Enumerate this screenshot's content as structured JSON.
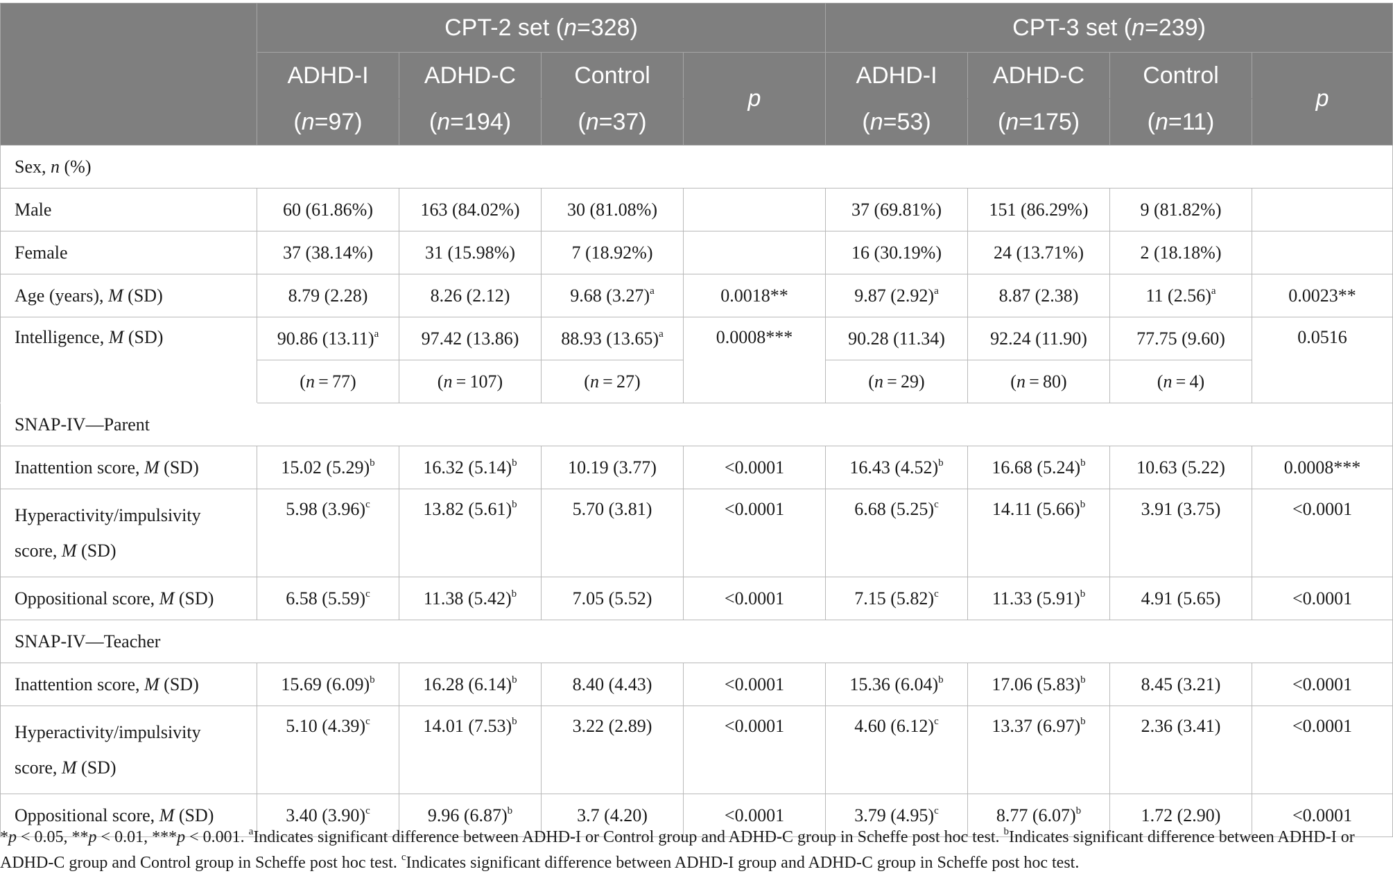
{
  "header": {
    "group_left": {
      "label": "CPT-2 set (",
      "n_italic": "n",
      "count": "=328)"
    },
    "group_right": {
      "label": "CPT-3 set (",
      "n_italic": "n",
      "count": "=239)"
    },
    "p_label": "p",
    "left_cols": [
      {
        "name": "ADHD-I",
        "n_pre": "(",
        "n_italic": "n",
        "n_post": "=97)"
      },
      {
        "name": "ADHD-C",
        "n_pre": "(",
        "n_italic": "n",
        "n_post": "=194)"
      },
      {
        "name": "Control",
        "n_pre": "(",
        "n_italic": "n",
        "n_post": "=37)"
      }
    ],
    "right_cols": [
      {
        "name": "ADHD-I",
        "n_pre": "(",
        "n_italic": "n",
        "n_post": "=53)"
      },
      {
        "name": "ADHD-C",
        "n_pre": "(",
        "n_italic": "n",
        "n_post": "=175)"
      },
      {
        "name": "Control",
        "n_pre": "(",
        "n_italic": "n",
        "n_post": "=11)"
      }
    ]
  },
  "rows": {
    "sex_section": {
      "pre": "Sex, ",
      "it": "n",
      "post": " (%)"
    },
    "male": {
      "label": "Male",
      "c": [
        "60 (61.86%)",
        "163 (84.02%)",
        "30 (81.08%)",
        "",
        "37 (69.81%)",
        "151 (86.29%)",
        "9 (81.82%)",
        ""
      ]
    },
    "female": {
      "label": "Female",
      "c": [
        "37 (38.14%)",
        "31 (15.98%)",
        "7 (18.92%)",
        "",
        "16 (30.19%)",
        "24 (13.71%)",
        "2 (18.18%)",
        ""
      ]
    },
    "age": {
      "label_pre": "Age (years), ",
      "label_it": "M",
      "label_post": " (SD)",
      "c": [
        "8.79 (2.28)",
        "8.26 (2.12)",
        "9.68 (3.27)",
        "0.0018**",
        "9.87 (2.92)",
        "8.87 (2.38)",
        "11 (2.56)",
        "0.0023**"
      ],
      "sup": [
        "",
        "",
        "a",
        "",
        "a",
        "",
        "a",
        ""
      ]
    },
    "intel": {
      "label_pre": "Intelligence, ",
      "label_it": "M",
      "label_post": " (SD)",
      "c": [
        "90.86 (13.11)",
        "97.42 (13.86)",
        "88.93 (13.65)",
        "0.0008***",
        "90.28 (11.34)",
        "92.24 (11.90)",
        "77.75 (9.60)",
        "0.0516"
      ],
      "sup": [
        "a",
        "",
        "a",
        "",
        "",
        "",
        "",
        ""
      ],
      "n_sub": [
        "77",
        "107",
        "27",
        "29",
        "80",
        "4"
      ]
    },
    "snap_parent": "SNAP-IV—Parent",
    "p_inatt": {
      "label_pre": "Inattention score, ",
      "label_it": "M",
      "label_post": " (SD)",
      "c": [
        "15.02 (5.29)",
        "16.32 (5.14)",
        "10.19 (3.77)",
        "<0.0001",
        "16.43 (4.52)",
        "16.68 (5.24)",
        "10.63 (5.22)",
        "0.0008***"
      ],
      "sup": [
        "b",
        "b",
        "",
        "",
        "b",
        "b",
        "",
        ""
      ]
    },
    "p_hyper": {
      "label_line1": "Hyperactivity/impulsivity",
      "label_line2_pre": "score, ",
      "label_it": "M",
      "label_post": " (SD)",
      "c": [
        "5.98 (3.96)",
        "13.82 (5.61)",
        "5.70 (3.81)",
        "<0.0001",
        "6.68 (5.25)",
        "14.11 (5.66)",
        "3.91 (3.75)",
        "<0.0001"
      ],
      "sup": [
        "c",
        "b",
        "",
        "",
        "c",
        "b",
        "",
        ""
      ]
    },
    "p_opp": {
      "label_pre": "Oppositional score, ",
      "label_it": "M",
      "label_post": " (SD)",
      "c": [
        "6.58 (5.59)",
        "11.38 (5.42)",
        "7.05 (5.52)",
        "<0.0001",
        "7.15 (5.82)",
        "11.33 (5.91)",
        "4.91 (5.65)",
        "<0.0001"
      ],
      "sup": [
        "c",
        "b",
        "",
        "",
        "c",
        "b",
        "",
        ""
      ]
    },
    "snap_teacher": "SNAP-IV—Teacher",
    "t_inatt": {
      "label_pre": "Inattention score, ",
      "label_it": "M",
      "label_post": " (SD)",
      "c": [
        "15.69 (6.09)",
        "16.28 (6.14)",
        "8.40 (4.43)",
        "<0.0001",
        "15.36 (6.04)",
        "17.06 (5.83)",
        "8.45 (3.21)",
        "<0.0001"
      ],
      "sup": [
        "b",
        "b",
        "",
        "",
        "b",
        "b",
        "",
        ""
      ]
    },
    "t_hyper": {
      "label_line1": "Hyperactivity/impulsivity",
      "label_line2_pre": "score, ",
      "label_it": "M",
      "label_post": " (SD)",
      "c": [
        "5.10 (4.39)",
        "14.01 (7.53)",
        "3.22 (2.89)",
        "<0.0001",
        "4.60 (6.12)",
        "13.37 (6.97)",
        "2.36 (3.41)",
        "<0.0001"
      ],
      "sup": [
        "c",
        "b",
        "",
        "",
        "c",
        "b",
        "",
        ""
      ]
    },
    "t_opp": {
      "label_pre": "Oppositional score, ",
      "label_it": "M",
      "label_post": " (SD)",
      "c": [
        "3.40 (3.90)",
        "9.96 (6.87)",
        "3.7 (4.20)",
        "<0.0001",
        "3.79 (4.95)",
        "8.77 (6.07)",
        "1.72 (2.90)",
        "<0.0001"
      ],
      "sup": [
        "c",
        "b",
        "",
        "",
        "c",
        "b",
        "",
        ""
      ]
    }
  },
  "footnote": {
    "s1": "*",
    "p1": "p",
    "v1": " < 0.05, **",
    "p2": "p",
    "v2": " < 0.01, ***",
    "p3": "p",
    "v3": " < 0.001. ",
    "a_mark": "a",
    "a_text": "Indicates significant difference between ADHD-I or Control group and ADHD-C group in Scheffe post hoc test. ",
    "b_mark": "b",
    "b_text": "Indicates significant difference between ADHD-I or ADHD-C group and Control group in Scheffe post hoc test. ",
    "c_mark": "c",
    "c_text": "Indicates significant difference between ADHD-I group and ADHD-C group in Scheffe post hoc test."
  }
}
